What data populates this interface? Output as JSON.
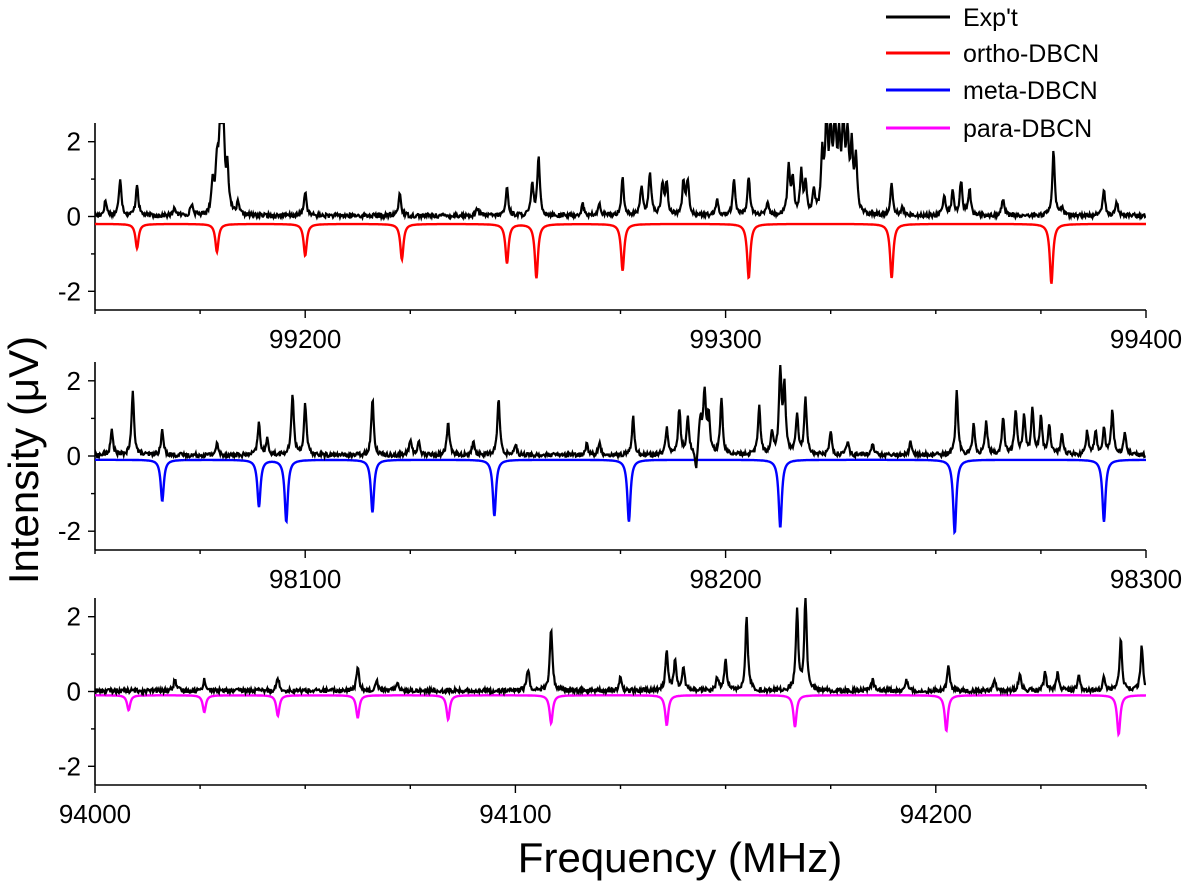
{
  "chart_data": {
    "type": "line",
    "xlabel": "Frequency (MHz)",
    "ylabel": "Intensity (μV)",
    "legend": {
      "position": "top-right",
      "entries": [
        {
          "label": "Exp't",
          "color": "#000000"
        },
        {
          "label": "ortho-DBCN",
          "color": "#ff0000"
        },
        {
          "label": "meta-DBCN",
          "color": "#0000ff"
        },
        {
          "label": "para-DBCN",
          "color": "#ff00ff"
        }
      ]
    },
    "panels": [
      {
        "name": "ortho",
        "xlim": [
          99150,
          99400
        ],
        "ylim": [
          -2.5,
          2.5
        ],
        "xticks": [
          99200,
          99300,
          99400
        ],
        "xtick_labels": [
          "99200",
          "99300",
          "99400"
        ],
        "yticks": [
          -2,
          0,
          2
        ],
        "ytick_labels": [
          "-2",
          "0",
          "2"
        ],
        "sim_series": "ortho-DBCN",
        "sim_color": "#ff0000",
        "sim_baseline": -0.2,
        "exp_peaks": [
          [
            99152.5,
            0.4
          ],
          [
            99156,
            1.0
          ],
          [
            99160,
            0.85
          ],
          [
            99169,
            0.2
          ],
          [
            99173,
            0.3
          ],
          [
            99178,
            0.9
          ],
          [
            99179,
            1.2
          ],
          [
            99179.8,
            2.5
          ],
          [
            99180.5,
            2.4
          ],
          [
            99181.5,
            1.2
          ],
          [
            99184,
            0.3
          ],
          [
            99200,
            0.65
          ],
          [
            99222.5,
            0.6
          ],
          [
            99241,
            0.2
          ],
          [
            99248,
            0.75
          ],
          [
            99254,
            0.8
          ],
          [
            99255.5,
            1.55
          ],
          [
            99266,
            0.3
          ],
          [
            99270,
            0.3
          ],
          [
            99275.5,
            1.0
          ],
          [
            99280,
            0.8
          ],
          [
            99282,
            1.15
          ],
          [
            99285,
            0.85
          ],
          [
            99286,
            0.8
          ],
          [
            99290,
            0.9
          ],
          [
            99291,
            0.9
          ],
          [
            99298,
            0.4
          ],
          [
            99302,
            0.95
          ],
          [
            99305.5,
            1.05
          ],
          [
            99310,
            0.3
          ],
          [
            99315,
            1.3
          ],
          [
            99316,
            0.9
          ],
          [
            99318,
            1.1
          ],
          [
            99319,
            0.8
          ],
          [
            99321,
            0.6
          ],
          [
            99323,
            1.5
          ],
          [
            99324,
            2.5
          ],
          [
            99325,
            2.0
          ],
          [
            99326,
            2.5
          ],
          [
            99327,
            1.8
          ],
          [
            99328,
            2.5
          ],
          [
            99329,
            2.0
          ],
          [
            99330,
            1.7
          ],
          [
            99331,
            1.4
          ],
          [
            99339.5,
            0.85
          ],
          [
            99342,
            0.2
          ],
          [
            99352,
            0.5
          ],
          [
            99354,
            0.6
          ],
          [
            99356,
            0.9
          ],
          [
            99358,
            0.7
          ],
          [
            99366,
            0.45
          ],
          [
            99378,
            1.7
          ],
          [
            99380,
            0.2
          ],
          [
            99390,
            0.7
          ],
          [
            99393,
            0.4
          ]
        ],
        "sim_peaks": [
          [
            99160,
            0.65
          ],
          [
            99179,
            0.75
          ],
          [
            99200,
            0.85
          ],
          [
            99223,
            0.95
          ],
          [
            99248,
            1.05
          ],
          [
            99255,
            1.45
          ],
          [
            99275.5,
            1.25
          ],
          [
            99305.5,
            1.45
          ],
          [
            99339.5,
            1.45
          ],
          [
            99377.5,
            1.6
          ]
        ]
      },
      {
        "name": "meta",
        "xlim": [
          98050,
          98300
        ],
        "ylim": [
          -2.5,
          2.5
        ],
        "xticks": [
          98100,
          98200,
          98300
        ],
        "xtick_labels": [
          "98100",
          "98200",
          "98300"
        ],
        "yticks": [
          -2,
          0,
          2
        ],
        "ytick_labels": [
          "-2",
          "0",
          "2"
        ],
        "sim_series": "meta-DBCN",
        "sim_color": "#0000ff",
        "sim_baseline": -0.1,
        "exp_peaks": [
          [
            98054,
            0.65
          ],
          [
            98059,
            1.7
          ],
          [
            98066,
            0.65
          ],
          [
            98079,
            0.3
          ],
          [
            98089,
            0.85
          ],
          [
            98091,
            0.4
          ],
          [
            98097,
            1.65
          ],
          [
            98100,
            1.35
          ],
          [
            98116,
            1.5
          ],
          [
            98125,
            0.4
          ],
          [
            98127,
            0.35
          ],
          [
            98134,
            0.9
          ],
          [
            98140,
            0.35
          ],
          [
            98146,
            1.5
          ],
          [
            98150,
            0.3
          ],
          [
            98167,
            0.3
          ],
          [
            98170,
            0.3
          ],
          [
            98178,
            1.0
          ],
          [
            98186,
            0.7
          ],
          [
            98189,
            1.2
          ],
          [
            98191,
            1.0
          ],
          [
            98194,
            1.8
          ],
          [
            98195,
            1.6
          ],
          [
            98196,
            1.0
          ],
          [
            98199,
            1.5
          ],
          [
            98208,
            1.3
          ],
          [
            98211,
            0.6
          ],
          [
            98213,
            2.2
          ],
          [
            98214,
            1.8
          ],
          [
            98217,
            1.1
          ],
          [
            98219,
            1.5
          ],
          [
            98225,
            0.6
          ],
          [
            98229,
            0.35
          ],
          [
            98235,
            0.3
          ],
          [
            98244,
            0.35
          ],
          [
            98255,
            1.7
          ],
          [
            98259,
            0.8
          ],
          [
            98262,
            0.9
          ],
          [
            98266,
            1.0
          ],
          [
            98269,
            1.2
          ],
          [
            98271,
            1.0
          ],
          [
            98273,
            1.2
          ],
          [
            98275,
            1.0
          ],
          [
            98277,
            0.8
          ],
          [
            98280,
            0.6
          ],
          [
            98286,
            0.6
          ],
          [
            98288,
            0.6
          ],
          [
            98290,
            0.7
          ],
          [
            98292,
            1.2
          ],
          [
            98295,
            0.6
          ]
        ],
        "exp_dips": [
          [
            98193,
            0.6
          ],
          [
            98194,
            0.95
          ]
        ],
        "sim_peaks": [
          [
            98066,
            1.1
          ],
          [
            98089,
            1.25
          ],
          [
            98095.5,
            1.65
          ],
          [
            98116,
            1.4
          ],
          [
            98145,
            1.5
          ],
          [
            98177,
            1.65
          ],
          [
            98213,
            1.8
          ],
          [
            98254.5,
            1.95
          ],
          [
            98290,
            1.65
          ]
        ]
      },
      {
        "name": "para",
        "xlim": [
          94000,
          94250
        ],
        "ylim": [
          -2.5,
          2.5
        ],
        "xticks": [
          94000,
          94100,
          94200
        ],
        "xtick_labels": [
          "94000",
          "94100",
          "94200"
        ],
        "yticks": [
          -2,
          0,
          2
        ],
        "ytick_labels": [
          "-2",
          "0",
          "2"
        ],
        "sim_series": "para-DBCN",
        "sim_color": "#ff00ff",
        "sim_baseline": -0.1,
        "exp_peaks": [
          [
            94019,
            0.3
          ],
          [
            94026,
            0.3
          ],
          [
            94043.5,
            0.35
          ],
          [
            94062.5,
            0.65
          ],
          [
            94067,
            0.3
          ],
          [
            94072,
            0.25
          ],
          [
            94103,
            0.6
          ],
          [
            94108.5,
            1.7
          ],
          [
            94125,
            0.35
          ],
          [
            94136,
            1.1
          ],
          [
            94138,
            0.8
          ],
          [
            94140,
            0.6
          ],
          [
            94148,
            0.35
          ],
          [
            94150,
            0.8
          ],
          [
            94155,
            2.0
          ],
          [
            94167,
            2.1
          ],
          [
            94169,
            2.5
          ],
          [
            94185,
            0.3
          ],
          [
            94193,
            0.3
          ],
          [
            94203,
            0.65
          ],
          [
            94214,
            0.3
          ],
          [
            94220,
            0.5
          ],
          [
            94226,
            0.5
          ],
          [
            94229,
            0.5
          ],
          [
            94234,
            0.4
          ],
          [
            94240,
            0.35
          ],
          [
            94244,
            1.4
          ],
          [
            94249,
            1.2
          ]
        ],
        "sim_peaks": [
          [
            94008,
            0.4
          ],
          [
            94026,
            0.45
          ],
          [
            94043.5,
            0.55
          ],
          [
            94062.5,
            0.6
          ],
          [
            94084,
            0.65
          ],
          [
            94108.5,
            0.75
          ],
          [
            94136,
            0.8
          ],
          [
            94166.5,
            0.85
          ],
          [
            94202.5,
            0.95
          ],
          [
            94243.5,
            1.05
          ]
        ]
      }
    ]
  }
}
